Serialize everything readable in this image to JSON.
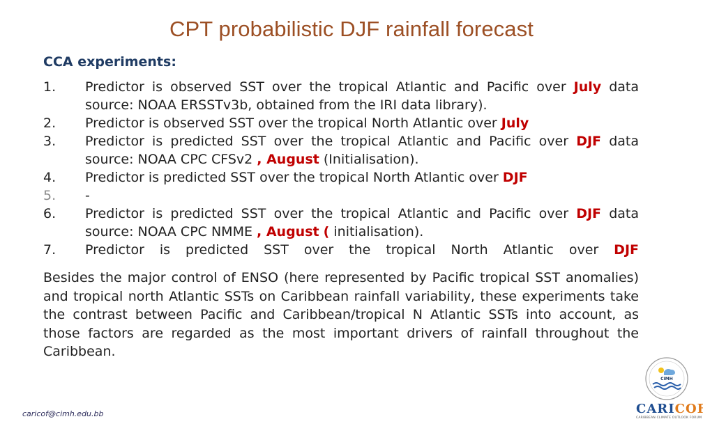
{
  "title": "CPT probabilistic DJF rainfall forecast",
  "subtitle": "CCA experiments:",
  "items": [
    {
      "num": "1.",
      "a": "Predictor is observed SST over the tropical Atlantic and Pacific over ",
      "h1": "July",
      "b": " data",
      "c": "",
      "d": ""
    },
    {
      "num": "",
      "a": "source: NOAA ERSSTv3b, obtained from the IRI data library).",
      "h1": "",
      "b": "",
      "c": "",
      "d": ""
    },
    {
      "num": "2.",
      "a": "Predictor is observed SST over the tropical North Atlantic over ",
      "h1": "July",
      "b": "",
      "c": "",
      "d": ""
    },
    {
      "num": "3.",
      "a": "Predictor is predicted SST over the tropical Atlantic and Pacific over ",
      "h1": "DJF",
      "b": " data",
      "c": "",
      "d": ""
    },
    {
      "num": "",
      "a": "source: NOAA CPC CFSv2 ",
      "h1": ", August",
      "b": " (Initialisation).",
      "c": "",
      "d": ""
    },
    {
      "num": "4.",
      "a": "Predictor is predicted SST over the tropical North Atlantic over ",
      "h1": "DJF",
      "b": "",
      "c": "",
      "d": ""
    },
    {
      "num": "5.",
      "a": "-",
      "h1": "",
      "b": "",
      "c": "",
      "d": ""
    },
    {
      "num": "6.",
      "a": "Predictor is predicted SST over the tropical Atlantic and Pacific over ",
      "h1": "DJF",
      "b": " data",
      "c": "",
      "d": ""
    },
    {
      "num": "",
      "a": "source: NOAA CPC NMME ",
      "h1": ", August",
      "b": " ",
      "c": "(",
      "d": " initialisation)."
    },
    {
      "num": "7.",
      "a": "Predictor is predicted SST over the tropical North Atlantic over ",
      "h1": "DJF",
      "b": "",
      "c": "",
      "d": ""
    }
  ],
  "paragraph": "Besides the major control of ENSO (here represented by Pacific tropical SST anomalies) and tropical north Atlantic SSTs on Caribbean rainfall variability, these experiments take the contrast between Pacific and Caribbean/tropical N Atlantic SSTs into account, as those factors are regarded as the most important drivers of rainfall throughout the Caribbean.",
  "footer": {
    "email": "caricof@cimh.edu.bb",
    "badge_text": "CIMH",
    "brand_a": "CARI",
    "brand_b": "COF",
    "brand_tagline": "CARIBBEAN CLIMATE OUTLOOK FORUM"
  },
  "colors": {
    "title": "#9c4f24",
    "accent": "#c00000",
    "brand": "#1f4e91",
    "brand_orange": "#e07a1a"
  }
}
